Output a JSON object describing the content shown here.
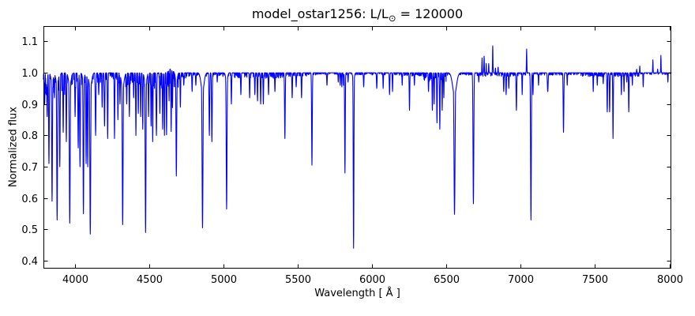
{
  "chart_data": {
    "type": "line",
    "title": "model_ostar1256: L/L⊙ = 120000",
    "title_parts": {
      "prefix": "model_ostar1256: L/L",
      "sun": "⊙",
      "suffix": " = 120000"
    },
    "xlabel": "Wavelength [ Å ]",
    "ylabel": "Normalized flux",
    "xlim": [
      3790,
      8013
    ],
    "ylim": [
      0.375,
      1.149
    ],
    "xticks": [
      4000,
      4500,
      5000,
      5500,
      6000,
      6500,
      7000,
      7500,
      8000
    ],
    "yticks": [
      0.4,
      0.5,
      0.6,
      0.7,
      0.8,
      0.9,
      1.0,
      1.1
    ],
    "line_color": "#0000ff",
    "axes_color": "#000000",
    "background": "#ffffff",
    "legend": "none",
    "grid": false,
    "continuum": 1.0,
    "noise_seed": 7,
    "absorption_lines": [
      [
        3798,
        0.9,
        2
      ],
      [
        3808,
        0.93,
        1.8
      ],
      [
        3815,
        0.86,
        2
      ],
      [
        3827,
        0.71,
        2.2
      ],
      [
        3848,
        0.59,
        2.4
      ],
      [
        3848,
        0.965,
        7
      ],
      [
        3864,
        0.92,
        1.8
      ],
      [
        3882,
        0.53,
        2.6
      ],
      [
        3882,
        0.96,
        8
      ],
      [
        3900,
        0.7,
        2.2
      ],
      [
        3923,
        0.81,
        2
      ],
      [
        3944,
        0.78,
        2
      ],
      [
        3967,
        0.52,
        2.8
      ],
      [
        3967,
        0.955,
        8
      ],
      [
        4003,
        0.86,
        2
      ],
      [
        4024,
        0.76,
        2.2
      ],
      [
        4036,
        0.7,
        2.2
      ],
      [
        4059,
        0.55,
        2.4
      ],
      [
        4059,
        0.97,
        6
      ],
      [
        4077,
        0.71,
        2
      ],
      [
        4088,
        0.7,
        2
      ],
      [
        4105,
        0.485,
        2.8
      ],
      [
        4105,
        0.95,
        9
      ],
      [
        4141,
        0.8,
        2.2
      ],
      [
        4162,
        0.93,
        1.8
      ],
      [
        4185,
        0.89,
        1.8
      ],
      [
        4201,
        0.83,
        2.2
      ],
      [
        4222,
        0.79,
        2
      ],
      [
        4268,
        0.79,
        1.8
      ],
      [
        4291,
        0.85,
        1.8
      ],
      [
        4305,
        0.9,
        1.8
      ],
      [
        4323,
        0.515,
        2.8
      ],
      [
        4323,
        0.95,
        9
      ],
      [
        4350,
        0.9,
        2
      ],
      [
        4368,
        0.86,
        1.8
      ],
      [
        4397,
        0.92,
        1.8
      ],
      [
        4412,
        0.8,
        1.8
      ],
      [
        4428,
        0.87,
        1.8
      ],
      [
        4444,
        0.86,
        1.8
      ],
      [
        4458,
        0.82,
        1.8
      ],
      [
        4477,
        0.49,
        2.6
      ],
      [
        4477,
        0.955,
        7
      ],
      [
        4497,
        0.86,
        1.8
      ],
      [
        4514,
        0.83,
        1.8
      ],
      [
        4525,
        0.78,
        1.8
      ],
      [
        4550,
        0.8,
        2.2
      ],
      [
        4573,
        0.87,
        1.8
      ],
      [
        4592,
        0.82,
        1.8
      ],
      [
        4604,
        0.8,
        1.8
      ],
      [
        4618,
        0.8,
        1.8
      ],
      [
        4635,
        0.9,
        1.5
      ],
      [
        4649,
        0.8,
        1.8
      ],
      [
        4658,
        0.88,
        1.5
      ],
      [
        4684,
        0.67,
        2.4
      ],
      [
        4684,
        0.965,
        6
      ],
      [
        4711,
        0.89,
        1.8
      ],
      [
        4734,
        0.96,
        1.8
      ],
      [
        4790,
        0.94,
        1.8
      ],
      [
        4815,
        0.96,
        1.8
      ],
      [
        4860,
        0.505,
        3
      ],
      [
        4860,
        0.94,
        10
      ],
      [
        4906,
        0.8,
        2.2
      ],
      [
        4923,
        0.78,
        2.2
      ],
      [
        4959,
        0.97,
        1.5
      ],
      [
        5022,
        0.565,
        2.6
      ],
      [
        5022,
        0.97,
        6
      ],
      [
        5054,
        0.9,
        1.8
      ],
      [
        5118,
        0.93,
        1.8
      ],
      [
        5177,
        0.92,
        1.8
      ],
      [
        5212,
        0.93,
        1.8
      ],
      [
        5230,
        0.91,
        1.8
      ],
      [
        5251,
        0.9,
        1.8
      ],
      [
        5269,
        0.9,
        1.8
      ],
      [
        5304,
        0.93,
        1.8
      ],
      [
        5347,
        0.94,
        1.8
      ],
      [
        5414,
        0.79,
        2.2
      ],
      [
        5463,
        0.92,
        1.8
      ],
      [
        5490,
        0.955,
        1.8
      ],
      [
        5526,
        0.92,
        1.8
      ],
      [
        5596,
        0.705,
        2.2
      ],
      [
        5697,
        0.96,
        1.8
      ],
      [
        5773,
        0.97,
        1.5
      ],
      [
        5786,
        0.96,
        1.5
      ],
      [
        5797,
        0.955,
        1.5
      ],
      [
        5809,
        0.96,
        1.5
      ],
      [
        5818,
        0.68,
        2
      ],
      [
        5839,
        0.97,
        1.5
      ],
      [
        5876,
        0.44,
        2.2
      ],
      [
        5876,
        0.97,
        5
      ],
      [
        5944,
        0.955,
        1.8
      ],
      [
        6032,
        0.95,
        1.8
      ],
      [
        6075,
        0.95,
        1.5
      ],
      [
        6118,
        0.93,
        1.8
      ],
      [
        6138,
        0.94,
        1.5
      ],
      [
        6203,
        0.96,
        1.5
      ],
      [
        6252,
        0.88,
        1.8
      ],
      [
        6285,
        0.96,
        1.5
      ],
      [
        6380,
        0.94,
        1.8
      ],
      [
        6406,
        0.88,
        1.8
      ],
      [
        6418,
        0.9,
        1.5
      ],
      [
        6437,
        0.84,
        1.8
      ],
      [
        6456,
        0.82,
        1.8
      ],
      [
        6472,
        0.88,
        1.5
      ],
      [
        6483,
        0.92,
        1.5
      ],
      [
        6555,
        0.548,
        3.5
      ],
      [
        6555,
        0.93,
        13
      ],
      [
        6682,
        0.582,
        2.6
      ],
      [
        6718,
        0.97,
        1.5
      ],
      [
        6886,
        0.94,
        1.8
      ],
      [
        6902,
        0.93,
        1.8
      ],
      [
        6920,
        0.95,
        1.8
      ],
      [
        6971,
        0.88,
        2
      ],
      [
        7010,
        0.93,
        1.5
      ],
      [
        7069,
        0.53,
        2.4
      ],
      [
        7083,
        0.93,
        1.5
      ],
      [
        7120,
        0.96,
        1.5
      ],
      [
        7182,
        0.94,
        2.6
      ],
      [
        7288,
        0.81,
        2.2
      ],
      [
        7313,
        0.96,
        1.5
      ],
      [
        7488,
        0.94,
        1.5
      ],
      [
        7515,
        0.96,
        1.5
      ],
      [
        7555,
        0.965,
        1.5
      ],
      [
        7582,
        0.875,
        1.8
      ],
      [
        7598,
        0.875,
        1.8
      ],
      [
        7621,
        0.79,
        1.8
      ],
      [
        7677,
        0.93,
        1.5
      ],
      [
        7695,
        0.94,
        1.5
      ],
      [
        7714,
        0.97,
        1.4
      ],
      [
        7727,
        0.875,
        1.8
      ],
      [
        7751,
        0.96,
        1.4
      ],
      [
        7824,
        0.955,
        1.5
      ],
      [
        7990,
        0.97,
        1.4
      ]
    ],
    "emission_lines": [
      [
        4645,
        0.013,
        14
      ],
      [
        6740,
        0.048,
        1.5
      ],
      [
        6754,
        0.053,
        1.5
      ],
      [
        6768,
        0.03,
        1.3
      ],
      [
        6785,
        0.03,
        1.3
      ],
      [
        6812,
        0.086,
        1.5
      ],
      [
        6830,
        0.02,
        1.2
      ],
      [
        6848,
        0.023,
        1.2
      ],
      [
        7040,
        0.076,
        1.5
      ],
      [
        7780,
        0.012,
        1.2
      ],
      [
        7801,
        0.022,
        1.2
      ],
      [
        7889,
        0.043,
        1.3
      ],
      [
        7921,
        0.012,
        1.2
      ],
      [
        7943,
        0.058,
        1.3
      ]
    ],
    "haze_regions": [
      [
        3790,
        3960,
        0.07
      ],
      [
        3960,
        4070,
        0.05
      ],
      [
        4070,
        4200,
        0.035
      ],
      [
        4200,
        4300,
        0.022
      ],
      [
        4300,
        4480,
        0.045
      ],
      [
        4480,
        4700,
        0.05
      ],
      [
        4700,
        4750,
        0.02
      ],
      [
        4750,
        5060,
        0.012
      ],
      [
        5060,
        5400,
        0.018
      ],
      [
        5400,
        5560,
        0.012
      ],
      [
        5560,
        6180,
        0.007
      ],
      [
        6180,
        6350,
        0.012
      ],
      [
        6350,
        6500,
        0.028
      ],
      [
        6500,
        6700,
        0.008
      ],
      [
        6700,
        6860,
        0.012
      ],
      [
        6860,
        7000,
        0.012
      ],
      [
        7000,
        7400,
        0.008
      ],
      [
        7400,
        7800,
        0.012
      ],
      [
        7800,
        8013,
        0.006
      ]
    ]
  }
}
